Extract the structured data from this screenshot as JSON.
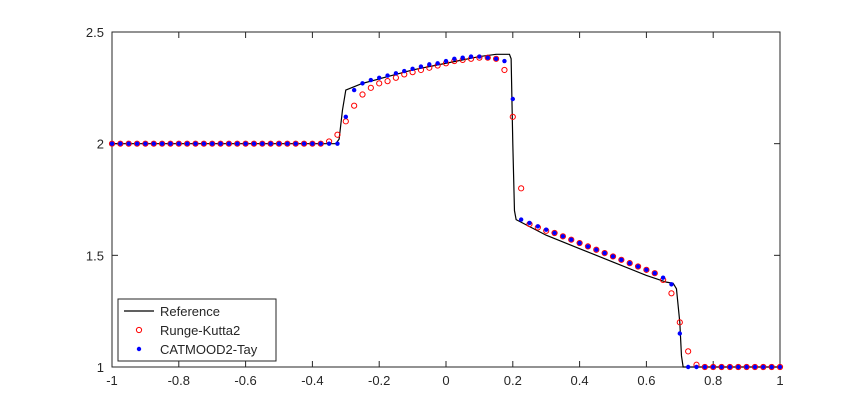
{
  "chart_data": {
    "type": "line",
    "xlim": [
      -1,
      1
    ],
    "ylim": [
      1,
      2.5
    ],
    "xticks": [
      -1,
      -0.8,
      -0.6,
      -0.4,
      -0.2,
      0,
      0.2,
      0.4,
      0.6,
      0.8,
      1
    ],
    "yticks": [
      1,
      1.5,
      2,
      2.5
    ],
    "grid": false,
    "legend": "lower left",
    "x": [
      -1,
      -0.975,
      -0.95,
      -0.925,
      -0.9,
      -0.875,
      -0.85,
      -0.825,
      -0.8,
      -0.775,
      -0.75,
      -0.725,
      -0.7,
      -0.675,
      -0.65,
      -0.625,
      -0.6,
      -0.575,
      -0.55,
      -0.525,
      -0.5,
      -0.475,
      -0.45,
      -0.425,
      -0.4,
      -0.375,
      -0.35,
      -0.325,
      -0.3,
      -0.275,
      -0.25,
      -0.225,
      -0.2,
      -0.175,
      -0.15,
      -0.125,
      -0.1,
      -0.075,
      -0.05,
      -0.025,
      0,
      0.025,
      0.05,
      0.075,
      0.1,
      0.125,
      0.15,
      0.175,
      0.2,
      0.225,
      0.25,
      0.275,
      0.3,
      0.325,
      0.35,
      0.375,
      0.4,
      0.425,
      0.45,
      0.475,
      0.5,
      0.525,
      0.55,
      0.575,
      0.6,
      0.625,
      0.65,
      0.675,
      0.7,
      0.725,
      0.75,
      0.775,
      0.8,
      0.825,
      0.85,
      0.875,
      0.9,
      0.925,
      0.95,
      0.975,
      1
    ],
    "series": [
      {
        "name": "Reference",
        "color": "#000000",
        "style": "line",
        "x": [
          -1,
          -0.33,
          -0.32,
          -0.31,
          -0.3,
          -0.25,
          -0.2,
          -0.1,
          0,
          0.1,
          0.15,
          0.19,
          0.195,
          0.2,
          0.205,
          0.21,
          0.3,
          0.4,
          0.5,
          0.6,
          0.66,
          0.68,
          0.69,
          0.7,
          0.705,
          0.71,
          0.72,
          1
        ],
        "values": [
          2,
          2,
          2.02,
          2.15,
          2.24,
          2.27,
          2.29,
          2.33,
          2.36,
          2.39,
          2.4,
          2.4,
          2.38,
          2,
          1.7,
          1.66,
          1.59,
          1.53,
          1.47,
          1.41,
          1.38,
          1.375,
          1.35,
          1.2,
          1.05,
          1,
          1,
          1
        ]
      },
      {
        "name": "Runge-Kutta2",
        "color": "#ff0000",
        "style": "circle",
        "values": [
          2,
          2,
          2,
          2,
          2,
          2,
          2,
          2,
          2,
          2,
          2,
          2,
          2,
          2,
          2,
          2,
          2,
          2,
          2,
          2,
          2,
          2,
          2,
          2,
          2,
          2,
          2.01,
          2.04,
          2.1,
          2.17,
          2.22,
          2.25,
          2.27,
          2.28,
          2.295,
          2.31,
          2.32,
          2.33,
          2.34,
          2.35,
          2.36,
          2.37,
          2.375,
          2.38,
          2.385,
          2.385,
          2.38,
          2.33,
          2.12,
          1.8,
          1.64,
          1.625,
          1.61,
          1.6,
          1.585,
          1.57,
          1.555,
          1.54,
          1.525,
          1.51,
          1.495,
          1.48,
          1.465,
          1.45,
          1.435,
          1.42,
          1.39,
          1.33,
          1.2,
          1.07,
          1.01,
          1,
          1,
          1,
          1,
          1,
          1,
          1,
          1,
          1,
          1
        ]
      },
      {
        "name": "CATMOOD2-Tay",
        "color": "#0000ff",
        "style": "dot",
        "values": [
          2,
          2,
          2,
          2,
          2,
          2,
          2,
          2,
          2,
          2,
          2,
          2,
          2,
          2,
          2,
          2,
          2,
          2,
          2,
          2,
          2,
          2,
          2,
          2,
          2,
          2,
          2,
          2,
          2.12,
          2.24,
          2.27,
          2.285,
          2.295,
          2.305,
          2.315,
          2.325,
          2.335,
          2.345,
          2.355,
          2.36,
          2.37,
          2.38,
          2.385,
          2.39,
          2.39,
          2.385,
          2.38,
          2.37,
          2.2,
          1.66,
          1.645,
          1.63,
          1.615,
          1.6,
          1.585,
          1.57,
          1.555,
          1.54,
          1.525,
          1.51,
          1.495,
          1.48,
          1.465,
          1.45,
          1.435,
          1.42,
          1.4,
          1.37,
          1.15,
          1,
          1,
          1,
          1,
          1,
          1,
          1,
          1,
          1,
          1,
          1,
          1
        ]
      }
    ]
  }
}
